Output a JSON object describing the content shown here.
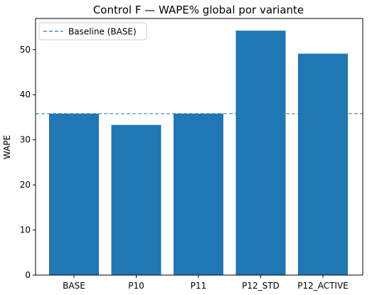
{
  "chart_data": {
    "type": "bar",
    "title": "Control F — WAPE% global por variante",
    "xlabel": "",
    "ylabel": "WAPE",
    "categories": [
      "BASE",
      "P10",
      "P11",
      "P12_STD",
      "P12_ACTIVE"
    ],
    "values": [
      35.8,
      33.3,
      35.8,
      54.2,
      49.1
    ],
    "ylim": [
      0,
      56.9
    ],
    "yticks": [
      0,
      10,
      20,
      30,
      40,
      50
    ],
    "baseline": {
      "label": "Baseline (BASE)",
      "value": 35.8,
      "style": "dashed"
    },
    "legend_position": "top-left",
    "grid": false,
    "colors": {
      "bar": "#1f77b4",
      "baseline": "#1f77b4"
    }
  }
}
